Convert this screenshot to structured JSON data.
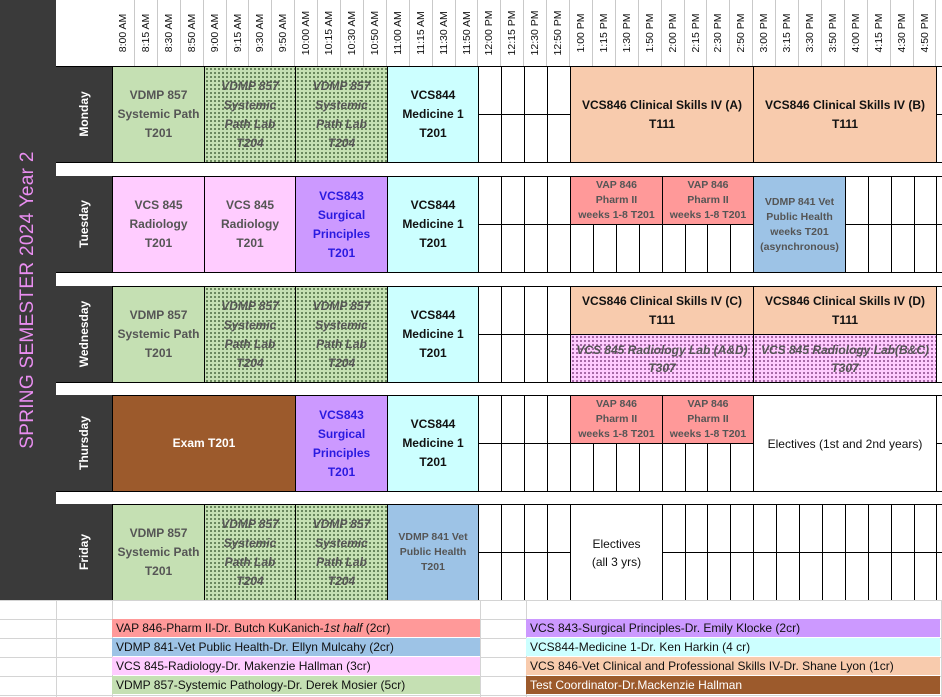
{
  "semester_title": "SPRING SEMESTER 2024 Year 2",
  "times": [
    "8:00 AM",
    "8:15 AM",
    "8:30 AM",
    "8:50 AM",
    "9:00 AM",
    "9:15 AM",
    "9:30 AM",
    "9:50 AM",
    "10:00 AM",
    "10:15 AM",
    "10:30 AM",
    "10:50 AM",
    "11:00 AM",
    "11:15 AM",
    "11:30 AM",
    "11:50 AM",
    "12:00 PM",
    "12:15 PM",
    "12:30 PM",
    "12:50 PM",
    "1:00 PM",
    "1:15 PM",
    "1:30 PM",
    "1:50 PM",
    "2:00 PM",
    "2:15 PM",
    "2:30 PM",
    "2:50 PM",
    "3:00 PM",
    "3:15 PM",
    "3:30 PM",
    "3:50 PM",
    "4:00 PM",
    "4:15 PM",
    "4:30 PM",
    "4:50 PM"
  ],
  "days": [
    "Monday",
    "Tuesday",
    "Wednesday",
    "Thursday",
    "Friday"
  ],
  "events": [
    {
      "day": 0,
      "start": 0,
      "span": 4,
      "half": "full",
      "lines": [
        "VDMP 857",
        "Systemic Path",
        "T201"
      ],
      "bg": "#c5e0b3",
      "style": "normal"
    },
    {
      "day": 0,
      "start": 4,
      "span": 4,
      "half": "full",
      "lines": [
        "VDMP 857",
        "Systemic",
        "Path Lab",
        "T204"
      ],
      "bg": "#c5e0b3",
      "style": "lab"
    },
    {
      "day": 0,
      "start": 8,
      "span": 4,
      "half": "full",
      "lines": [
        "VDMP 857",
        "Systemic",
        "Path Lab",
        "T204"
      ],
      "bg": "#c5e0b3",
      "style": "lab"
    },
    {
      "day": 0,
      "start": 12,
      "span": 4,
      "half": "full",
      "lines": [
        "VCS844",
        "Medicine 1",
        "T201"
      ],
      "bg": "#ccffff",
      "style": "bold"
    },
    {
      "day": 0,
      "start": 20,
      "span": 8,
      "half": "full",
      "lines": [
        "VCS846 Clinical Skills IV (A)",
        "T111"
      ],
      "bg": "#f8cbad",
      "style": "bold"
    },
    {
      "day": 0,
      "start": 28,
      "span": 8,
      "half": "full",
      "lines": [
        "VCS846 Clinical Skills IV (B)",
        "T111"
      ],
      "bg": "#f8cbad",
      "style": "bold"
    },
    {
      "day": 1,
      "start": 0,
      "span": 4,
      "half": "full",
      "lines": [
        "VCS 845",
        "Radiology",
        "T201"
      ],
      "bg": "#ffccff",
      "style": "normal"
    },
    {
      "day": 1,
      "start": 4,
      "span": 4,
      "half": "full",
      "lines": [
        "VCS 845",
        "Radiology",
        "T201"
      ],
      "bg": "#ffccff",
      "style": "normal"
    },
    {
      "day": 1,
      "start": 8,
      "span": 4,
      "half": "full",
      "lines": [
        "VCS843",
        "Surgical",
        "Principles",
        "T201"
      ],
      "bg": "#cc99ff",
      "style": "surg"
    },
    {
      "day": 1,
      "start": 12,
      "span": 4,
      "half": "full",
      "lines": [
        "VCS844",
        "Medicine 1",
        "T201"
      ],
      "bg": "#ccffff",
      "style": "bold"
    },
    {
      "day": 1,
      "start": 20,
      "span": 4,
      "half": "top",
      "lines": [
        "VAP 846",
        "Pharm II",
        "weeks 1-8 T201"
      ],
      "bg": "#ff9999",
      "style": "small"
    },
    {
      "day": 1,
      "start": 24,
      "span": 4,
      "half": "top",
      "lines": [
        "VAP 846",
        "Pharm II",
        "weeks 1-8 T201"
      ],
      "bg": "#ff9999",
      "style": "small"
    },
    {
      "day": 1,
      "start": 28,
      "span": 4,
      "half": "full",
      "lines": [
        "VDMP 841 Vet",
        "Public Health",
        "weeks T201",
        "(asynchronous)"
      ],
      "bg": "#9dc3e6",
      "style": "small"
    },
    {
      "day": 2,
      "start": 0,
      "span": 4,
      "half": "full",
      "lines": [
        "VDMP 857",
        "Systemic Path",
        "T201"
      ],
      "bg": "#c5e0b3",
      "style": "normal"
    },
    {
      "day": 2,
      "start": 4,
      "span": 4,
      "half": "full",
      "lines": [
        "VDMP 857",
        "Systemic",
        "Path Lab",
        "T204"
      ],
      "bg": "#c5e0b3",
      "style": "lab"
    },
    {
      "day": 2,
      "start": 8,
      "span": 4,
      "half": "full",
      "lines": [
        "VDMP 857",
        "Systemic",
        "Path Lab",
        "T204"
      ],
      "bg": "#c5e0b3",
      "style": "lab"
    },
    {
      "day": 2,
      "start": 12,
      "span": 4,
      "half": "full",
      "lines": [
        "VCS844",
        "Medicine 1",
        "T201"
      ],
      "bg": "#ccffff",
      "style": "bold"
    },
    {
      "day": 2,
      "start": 20,
      "span": 8,
      "half": "top",
      "lines": [
        "VCS846 Clinical Skills IV (C)",
        "T111"
      ],
      "bg": "#f8cbad",
      "style": "bold"
    },
    {
      "day": 2,
      "start": 28,
      "span": 8,
      "half": "top",
      "lines": [
        "VCS846 Clinical Skills IV (D)",
        "T111"
      ],
      "bg": "#f8cbad",
      "style": "bold"
    },
    {
      "day": 2,
      "start": 20,
      "span": 8,
      "half": "bottom",
      "lines": [
        "VCS 845 Radiology Lab (A&D)",
        "T307"
      ],
      "bg": "#ffccff",
      "style": "pinklab"
    },
    {
      "day": 2,
      "start": 28,
      "span": 8,
      "half": "bottom",
      "lines": [
        "VCS 845 Radiology Lab(B&C)",
        "T307"
      ],
      "bg": "#ffccff",
      "style": "pinklab"
    },
    {
      "day": 3,
      "start": 0,
      "span": 8,
      "half": "full",
      "lines": [
        "Exam T201"
      ],
      "bg": "#9c5a2c",
      "style": "exam"
    },
    {
      "day": 3,
      "start": 8,
      "span": 4,
      "half": "full",
      "lines": [
        "VCS843",
        "Surgical",
        "Principles",
        "T201"
      ],
      "bg": "#cc99ff",
      "style": "surg"
    },
    {
      "day": 3,
      "start": 12,
      "span": 4,
      "half": "full",
      "lines": [
        "VCS844",
        "Medicine 1",
        "T201"
      ],
      "bg": "#ccffff",
      "style": "bold"
    },
    {
      "day": 3,
      "start": 20,
      "span": 4,
      "half": "top",
      "lines": [
        "VAP 846",
        "Pharm II",
        "weeks 1-8 T201"
      ],
      "bg": "#ff9999",
      "style": "small"
    },
    {
      "day": 3,
      "start": 24,
      "span": 4,
      "half": "top",
      "lines": [
        "VAP 846",
        "Pharm II",
        "weeks 1-8 T201"
      ],
      "bg": "#ff9999",
      "style": "small"
    },
    {
      "day": 3,
      "start": 28,
      "span": 8,
      "half": "full",
      "lines": [
        "Electives (1st and 2nd years)"
      ],
      "bg": "#ffffff",
      "style": "plain"
    },
    {
      "day": 4,
      "start": 0,
      "span": 4,
      "half": "full",
      "lines": [
        "VDMP 857",
        "Systemic Path",
        "T201"
      ],
      "bg": "#c5e0b3",
      "style": "normal"
    },
    {
      "day": 4,
      "start": 4,
      "span": 4,
      "half": "full",
      "lines": [
        "VDMP 857",
        "Systemic",
        "Path Lab",
        "T204"
      ],
      "bg": "#c5e0b3",
      "style": "lab"
    },
    {
      "day": 4,
      "start": 8,
      "span": 4,
      "half": "full",
      "lines": [
        "VDMP 857",
        "Systemic",
        "Path Lab",
        "T204"
      ],
      "bg": "#c5e0b3",
      "style": "lab"
    },
    {
      "day": 4,
      "start": 12,
      "span": 4,
      "half": "full",
      "lines": [
        "VDMP 841 Vet",
        "Public Health",
        "T201"
      ],
      "bg": "#9dc3e6",
      "style": "small"
    },
    {
      "day": 4,
      "start": 20,
      "span": 4,
      "half": "full",
      "lines": [
        "Electives",
        "(all 3 yrs)"
      ],
      "bg": "#ffffff",
      "style": "plain"
    }
  ],
  "legend": [
    {
      "text": "VAP 846-Pharm II-Dr. Butch KuKanich-",
      "italic": "1st half",
      "tail": " (2cr)",
      "bg": "#ff9999",
      "col": 0,
      "row": 0
    },
    {
      "text": "VDMP 841-Vet Public Health-Dr. Ellyn Mulcahy (2cr)",
      "italic": "",
      "tail": "",
      "bg": "#9dc3e6",
      "col": 0,
      "row": 1
    },
    {
      "text": "VCS 845-Radiology-Dr. Makenzie Hallman (3cr)",
      "italic": "",
      "tail": "",
      "bg": "#ffccff",
      "col": 0,
      "row": 2
    },
    {
      "text": "VDMP 857-Systemic Pathology-Dr. Derek Mosier (5cr)",
      "italic": "",
      "tail": "",
      "bg": "#c5e0b3",
      "col": 0,
      "row": 3
    },
    {
      "text": "VCS 843-Surgical Principles-Dr. Emily Klocke (2cr)",
      "italic": "",
      "tail": "",
      "bg": "#cc99ff",
      "col": 1,
      "row": 0
    },
    {
      "text": "VCS844-Medicine 1-Dr. Ken Harkin (4 cr)",
      "italic": "",
      "tail": "",
      "bg": "#ccffff",
      "col": 1,
      "row": 1
    },
    {
      "text": "VCS 846-Vet Clinical and Professional Skills IV-Dr. Shane Lyon (1cr)",
      "italic": "",
      "tail": "",
      "bg": "#f8cbad",
      "col": 1,
      "row": 2
    },
    {
      "text": "Test Coordinator-Dr.Mackenzie Hallman",
      "italic": "",
      "tail": "",
      "bg": "#9c5a2c",
      "col": 1,
      "row": 3,
      "light": true
    }
  ]
}
